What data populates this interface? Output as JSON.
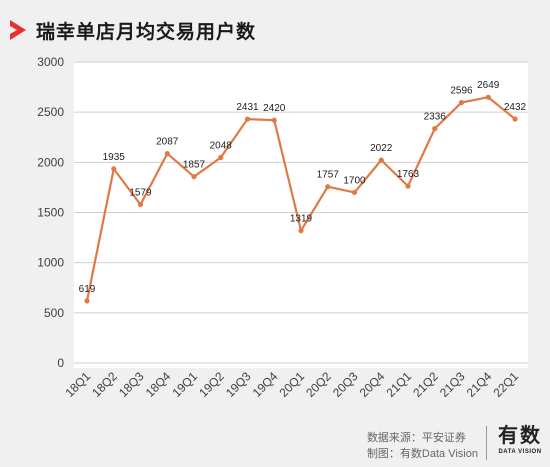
{
  "title": "瑞幸单店月均交易用户数",
  "source_line1": "数据来源：平安证券",
  "source_line2": "制图：有数Data Vision",
  "logo": {
    "main": "有数",
    "sub": "DATA VISION"
  },
  "colors": {
    "line": "#e07a45",
    "accent": "#e8312f",
    "grid": "#cfcfcf",
    "plot_bg": "#ffffff"
  },
  "chart_data": {
    "type": "line",
    "title": "瑞幸单店月均交易用户数",
    "categories": [
      "18Q1",
      "18Q2",
      "18Q3",
      "18Q4",
      "19Q1",
      "19Q2",
      "19Q3",
      "19Q4",
      "20Q1",
      "20Q2",
      "20Q3",
      "20Q4",
      "21Q1",
      "21Q2",
      "21Q3",
      "21Q4",
      "22Q1"
    ],
    "series": [
      {
        "values": [
          619,
          1935,
          1579,
          2087,
          1857,
          2048,
          2431,
          2420,
          1319,
          1757,
          1700,
          2022,
          1763,
          2336,
          2596,
          2649,
          2432
        ]
      }
    ],
    "yticks": [
      0,
      500,
      1000,
      1500,
      2000,
      2500,
      3000
    ],
    "ylim": [
      0,
      3000
    ],
    "grid": true,
    "legend": "none"
  }
}
